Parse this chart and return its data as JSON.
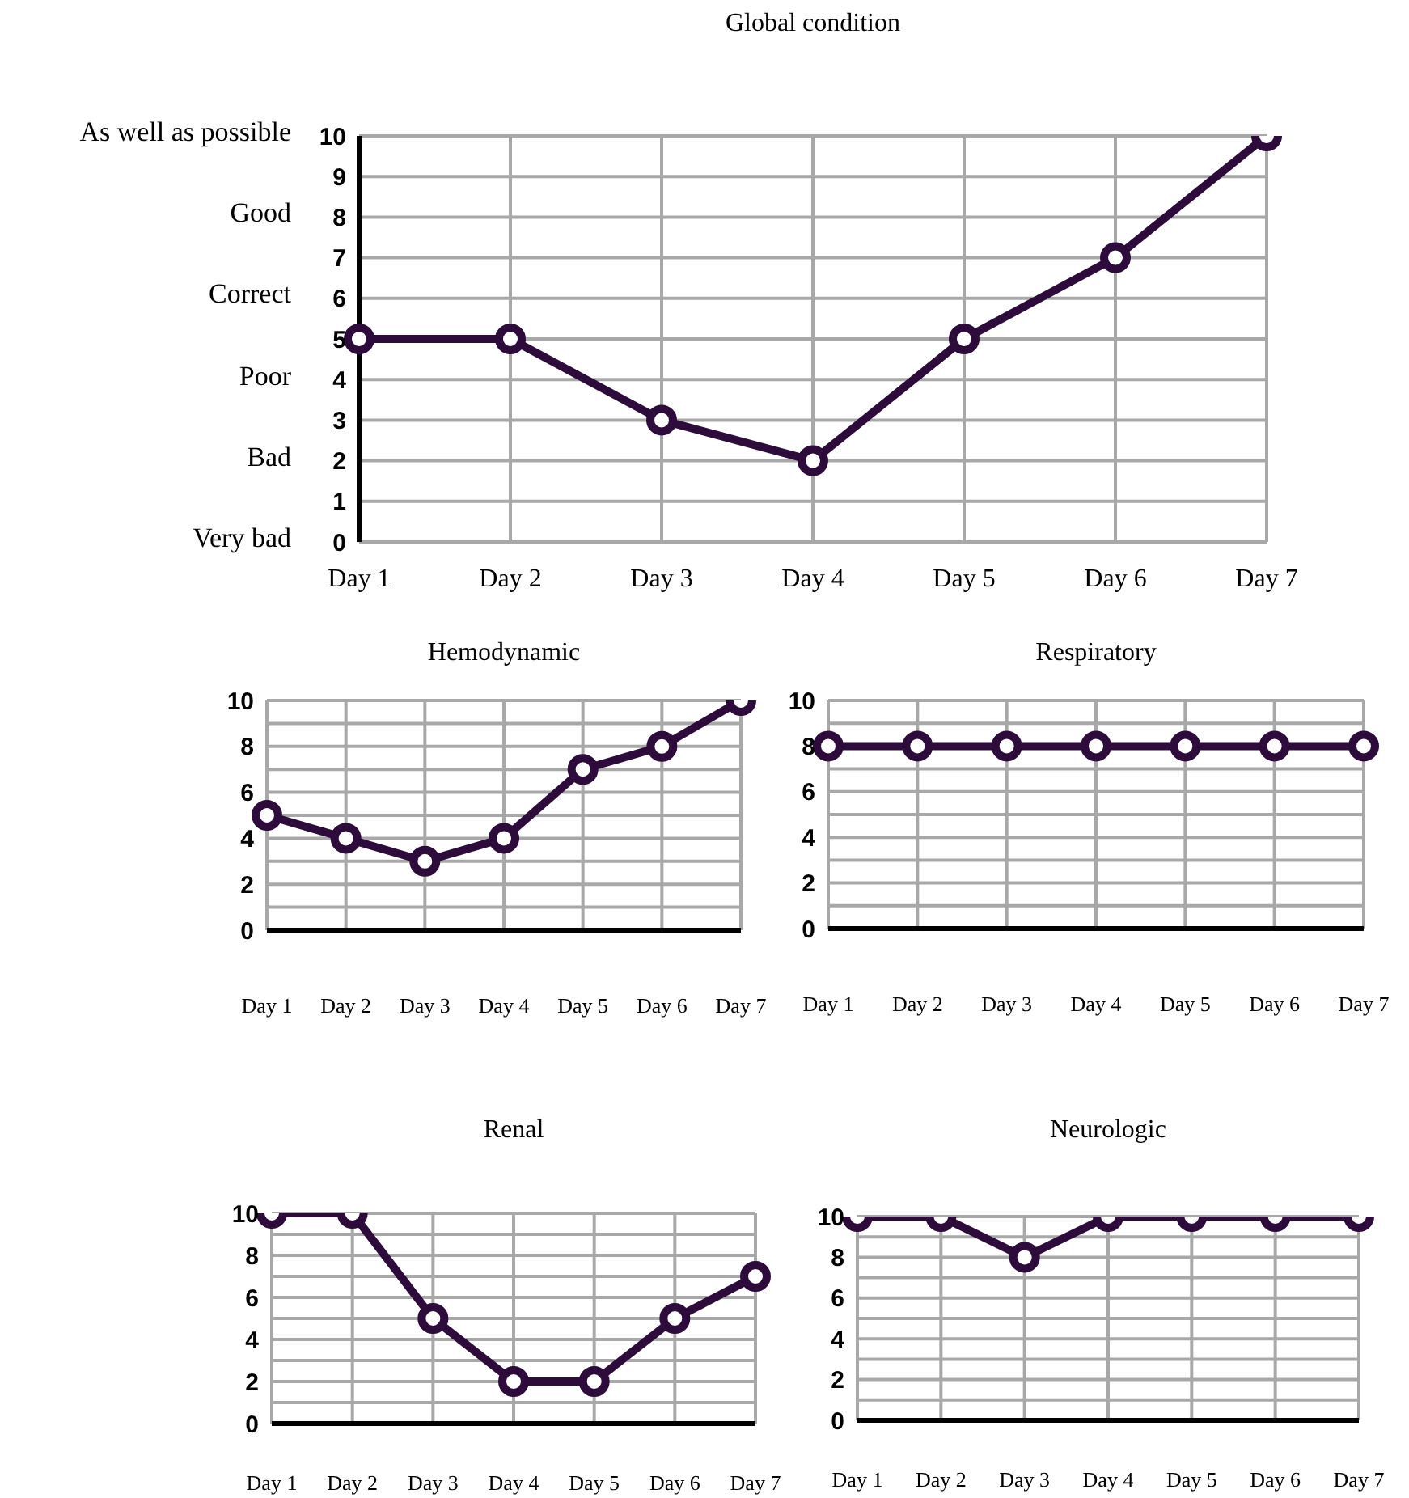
{
  "chart_data": [
    {
      "type": "line",
      "title": "Global condition",
      "categories": [
        "Day 1",
        "Day 2",
        "Day 3",
        "Day 4",
        "Day 5",
        "Day 6",
        "Day 7"
      ],
      "series": [
        {
          "color": "#2d0b3b",
          "values": [
            5,
            5,
            3,
            2,
            5,
            7,
            10
          ]
        }
      ],
      "ylim": [
        0,
        10
      ],
      "yticks": [
        0,
        1,
        2,
        3,
        4,
        5,
        6,
        7,
        8,
        9,
        10
      ],
      "annotations": [
        "As well as possible",
        "Good",
        "Correct",
        "Poor",
        "Bad",
        "Very bad"
      ],
      "grid": true,
      "marker": "circle",
      "legend": false
    },
    {
      "type": "line",
      "title": "Hemodynamic",
      "categories": [
        "Day 1",
        "Day 2",
        "Day 3",
        "Day 4",
        "Day 5",
        "Day 6",
        "Day 7"
      ],
      "series": [
        {
          "color": "#2d0b3b",
          "values": [
            5,
            4,
            3,
            4,
            7,
            8,
            10
          ]
        }
      ],
      "ylim": [
        0,
        10
      ],
      "yticks": [
        0,
        {
          "value": 1,
          "label": null
        },
        2,
        {
          "value": 3,
          "label": null
        },
        4,
        {
          "value": 5,
          "label": null
        },
        6,
        {
          "value": 7,
          "label": null
        },
        8,
        {
          "value": 9,
          "label": null
        },
        10
      ],
      "grid": true,
      "marker": "circle",
      "legend": false
    },
    {
      "type": "line",
      "title": "Respiratory",
      "categories": [
        "Day 1",
        "Day 2",
        "Day 3",
        "Day 4",
        "Day 5",
        "Day 6",
        "Day 7"
      ],
      "series": [
        {
          "color": "#2d0b3b",
          "values": [
            8,
            8,
            8,
            8,
            8,
            8,
            8
          ]
        }
      ],
      "ylim": [
        0,
        10
      ],
      "yticks": [
        0,
        {
          "value": 1,
          "label": null
        },
        2,
        {
          "value": 3,
          "label": null
        },
        4,
        {
          "value": 5,
          "label": null
        },
        6,
        {
          "value": 7,
          "label": null
        },
        8,
        {
          "value": 9,
          "label": null
        },
        10
      ],
      "grid": true,
      "marker": "circle",
      "legend": false
    },
    {
      "type": "line",
      "title": "Renal",
      "categories": [
        "Day 1",
        "Day 2",
        "Day 3",
        "Day 4",
        "Day 5",
        "Day 6",
        "Day 7"
      ],
      "series": [
        {
          "color": "#2d0b3b",
          "values": [
            10,
            10,
            5,
            2,
            2,
            5,
            7
          ]
        }
      ],
      "ylim": [
        0,
        10
      ],
      "yticks": [
        0,
        {
          "value": 1,
          "label": null
        },
        2,
        {
          "value": 3,
          "label": null
        },
        4,
        {
          "value": 5,
          "label": null
        },
        6,
        {
          "value": 7,
          "label": null
        },
        8,
        {
          "value": 9,
          "label": null
        },
        10
      ],
      "grid": true,
      "marker": "circle",
      "legend": false
    },
    {
      "type": "line",
      "title": "Neurologic",
      "categories": [
        "Day 1",
        "Day 2",
        "Day 3",
        "Day 4",
        "Day 5",
        "Day 6",
        "Day 7"
      ],
      "series": [
        {
          "color": "#2d0b3b",
          "values": [
            10,
            10,
            8,
            10,
            10,
            10,
            10
          ]
        }
      ],
      "ylim": [
        0,
        10
      ],
      "yticks": [
        0,
        {
          "value": 1,
          "label": null
        },
        2,
        {
          "value": 3,
          "label": null
        },
        4,
        {
          "value": 5,
          "label": null
        },
        6,
        {
          "value": 7,
          "label": null
        },
        8,
        {
          "value": 9,
          "label": null
        },
        10
      ],
      "grid": true,
      "marker": "circle",
      "legend": false
    }
  ]
}
